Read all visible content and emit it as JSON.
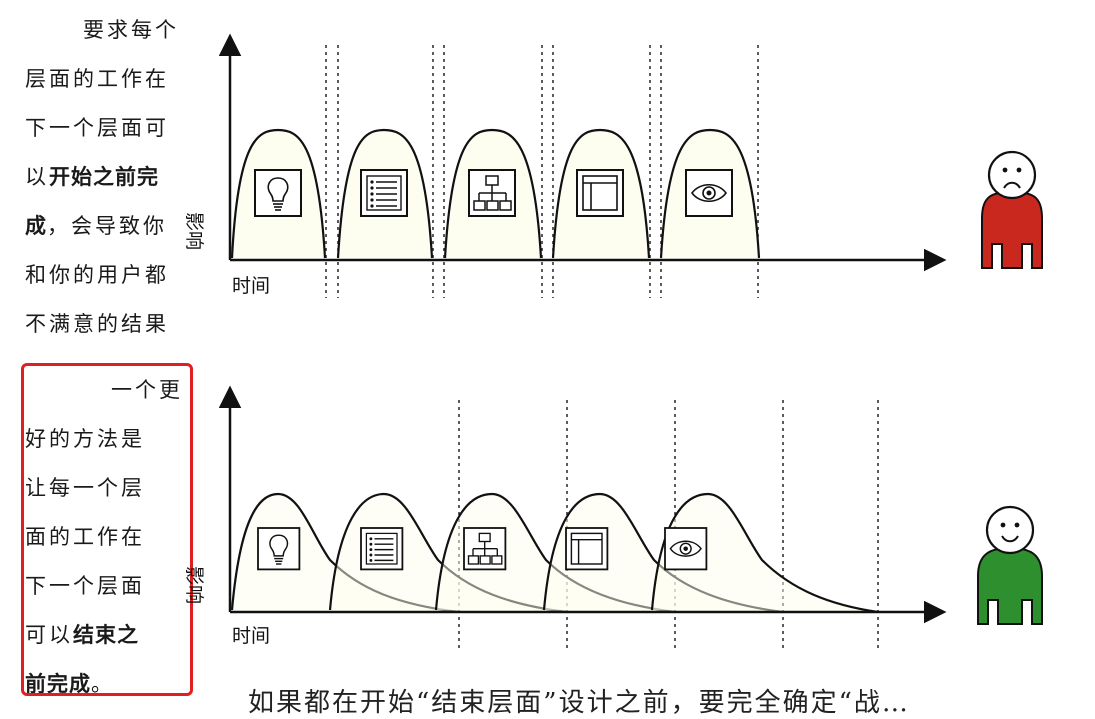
{
  "top_panel": {
    "text_lines": [
      [
        {
          "t": "要求每个",
          "b": false
        }
      ],
      [
        {
          "t": "层面的工作在",
          "b": false
        }
      ],
      [
        {
          "t": "下一个层面可",
          "b": false
        }
      ],
      [
        {
          "t": "以",
          "b": false
        },
        {
          "t": "开始之前完",
          "b": true
        }
      ],
      [
        {
          "t": "成",
          "b": true
        },
        {
          "t": "，会导致你",
          "b": false
        }
      ],
      [
        {
          "t": "和你的用户都",
          "b": false
        }
      ],
      [
        {
          "t": "不满意的结果",
          "b": false
        }
      ]
    ],
    "x_axis_label": "时间",
    "y_axis_label": "影响",
    "user_mood": "sad",
    "user_color": "#c9281f"
  },
  "bottom_panel": {
    "text_lines": [
      [
        {
          "t": "一个更",
          "b": false
        }
      ],
      [
        {
          "t": "好的方法是",
          "b": false
        }
      ],
      [
        {
          "t": "让每一个层",
          "b": false
        }
      ],
      [
        {
          "t": "面的工作在",
          "b": false
        }
      ],
      [
        {
          "t": "下一个层面",
          "b": false
        }
      ],
      [
        {
          "t": "可以",
          "b": false
        },
        {
          "t": "结束之",
          "b": true
        }
      ],
      [
        {
          "t": "前完成",
          "b": true
        },
        {
          "t": "。",
          "b": false
        }
      ]
    ],
    "x_axis_label": "时间",
    "y_axis_label": "影响",
    "user_mood": "happy",
    "user_color": "#2e8f2e",
    "highlight_color": "#e02020"
  },
  "stage_icons": [
    "lightbulb-icon",
    "list-icon",
    "sitemap-icon",
    "layout-icon",
    "eye-icon"
  ],
  "bottom_caption": "如果都在开始“结束层面”设计之前，要完全确定“战…"
}
